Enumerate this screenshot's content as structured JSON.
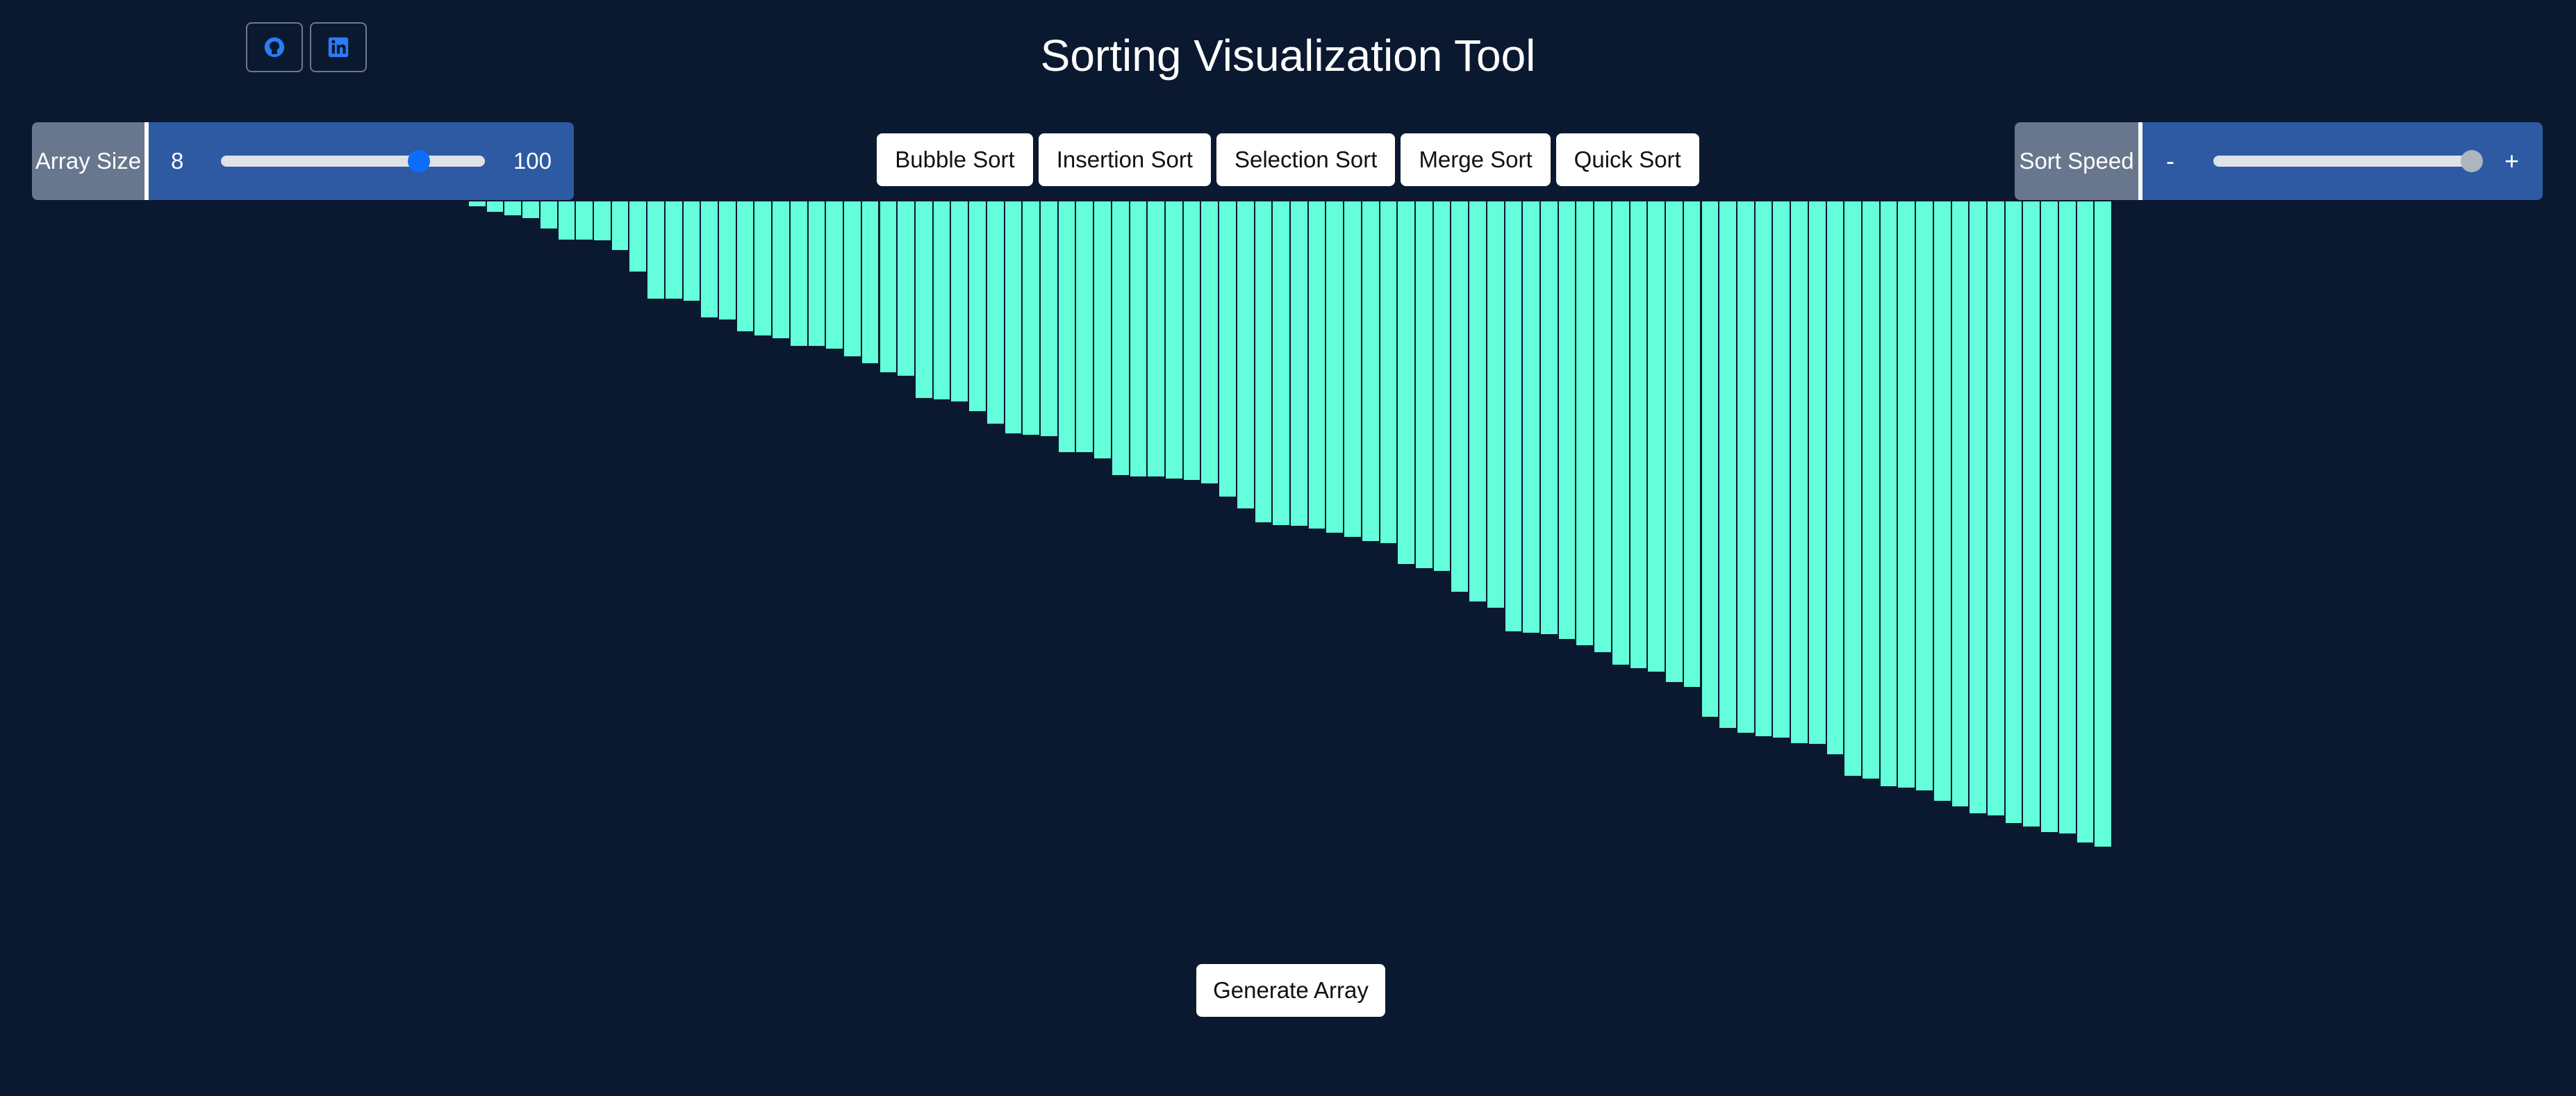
{
  "header": {
    "title": "Sorting Visualization Tool",
    "github_icon": "github-icon",
    "linkedin_icon": "linkedin-icon"
  },
  "array_size": {
    "label": "Array Size",
    "min": "8",
    "max": "100",
    "value_fraction": 0.75
  },
  "algorithms": [
    "Bubble Sort",
    "Insertion Sort",
    "Selection Sort",
    "Merge Sort",
    "Quick Sort"
  ],
  "sort_speed": {
    "label": "Sort Speed",
    "decrease": "-",
    "increase": "+",
    "value_fraction": 1.0
  },
  "chart_data": {
    "type": "bar",
    "values": [
      10,
      19,
      25,
      31,
      49,
      68,
      68,
      69,
      87,
      124,
      172,
      172,
      175,
      205,
      208,
      229,
      237,
      241,
      255,
      255,
      260,
      273,
      285,
      301,
      307,
      346,
      349,
      353,
      370,
      392,
      408,
      411,
      413,
      441,
      441,
      452,
      482,
      484,
      484,
      488,
      490,
      496,
      520,
      540,
      565,
      569,
      571,
      576,
      583,
      590,
      598,
      601,
      638,
      645,
      650,
      686,
      704,
      715,
      756,
      758,
      761,
      769,
      780,
      793,
      815,
      821,
      827,
      845,
      854,
      906,
      925,
      934,
      940,
      942,
      952,
      954,
      972,
      1010,
      1014,
      1028,
      1030,
      1035,
      1053,
      1063,
      1075,
      1079,
      1092,
      1099,
      1109,
      1111,
      1127,
      1134
    ],
    "color": "#64ffda"
  },
  "actions": {
    "generate": "Generate Array"
  },
  "colors": {
    "background": "#0b1930",
    "bar": "#64ffda",
    "group_label": "#68778d",
    "group_body": "#2d5aa2",
    "slider_thumb_active": "#0d6efd"
  }
}
